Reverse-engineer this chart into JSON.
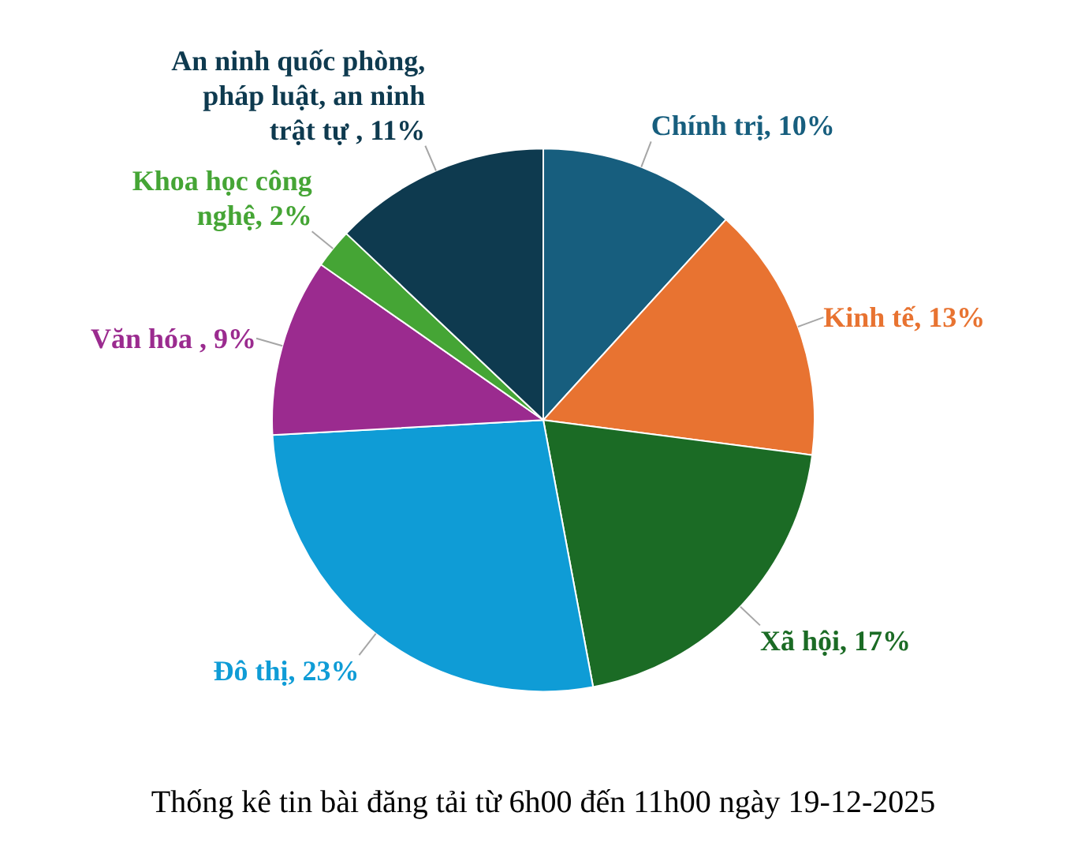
{
  "chart_data": {
    "type": "pie",
    "title": "Thống kê tin bài đăng tải từ 6h00 đến 11h00 ngày 19-12-2025",
    "categories": [
      "Chính trị",
      "Kinh tế",
      "Xã hội",
      "Đô thị",
      "Văn hóa ",
      "Khoa học công nghệ",
      "An ninh quốc phòng, pháp luật, an ninh trật tự "
    ],
    "values": [
      10,
      13,
      17,
      23,
      9,
      2,
      11
    ],
    "value_labels": [
      "10%",
      "13%",
      "17%",
      "23%",
      "9%",
      "2%",
      "11%"
    ],
    "colors": [
      "#175e7e",
      "#e87331",
      "#1b6b25",
      "#0f9cd6",
      "#9b2b8f",
      "#45a535",
      "#0e3a4f"
    ]
  }
}
